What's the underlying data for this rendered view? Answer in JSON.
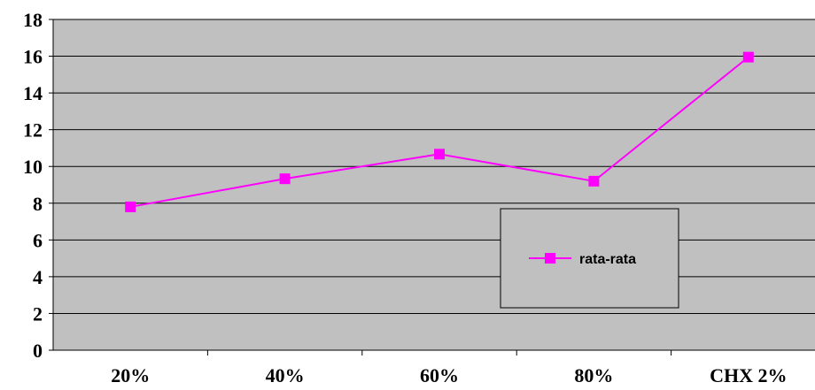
{
  "chart_data": {
    "type": "line",
    "categories": [
      "20%",
      "40%",
      "60%",
      "80%",
      "CHX 2%"
    ],
    "series": [
      {
        "name": "rata-rata",
        "values": [
          7.8,
          9.33,
          10.67,
          9.2,
          15.95
        ]
      }
    ],
    "ylim": [
      0,
      18
    ],
    "yticks": [
      "0",
      "2",
      "4",
      "6",
      "8",
      "10",
      "12",
      "14",
      "16",
      "18"
    ],
    "grid": true,
    "legend_position": "lower-right",
    "colors": {
      "series": "#FF00FF",
      "plot_background": "#C0C0C0",
      "grid": "#000000"
    }
  }
}
